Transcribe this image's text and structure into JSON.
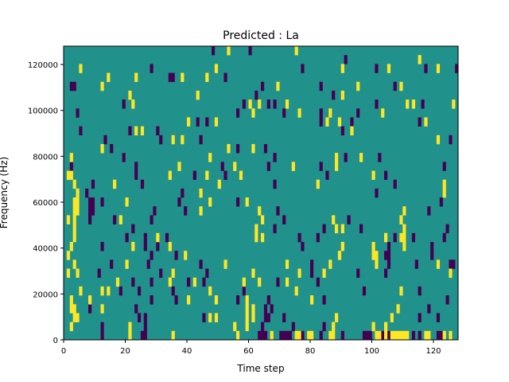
{
  "chart_data": {
    "type": "heatmap",
    "title": "Predicted : La",
    "xlabel": "Time step",
    "ylabel": "Frequency (Hz)",
    "xlim": [
      0,
      128
    ],
    "ylim": [
      0,
      128000
    ],
    "n_time_steps": 128,
    "n_freq_bins": 33,
    "xticks": [
      0,
      20,
      40,
      60,
      80,
      100,
      120
    ],
    "xtick_labels": [
      "0",
      "20",
      "40",
      "60",
      "80",
      "100",
      "120"
    ],
    "yticks": [
      0,
      20000,
      40000,
      60000,
      80000,
      100000,
      120000
    ],
    "ytick_labels": [
      "0",
      "20000",
      "40000",
      "60000",
      "80000",
      "100000",
      "120000"
    ],
    "colormap": {
      "low": "#440154",
      "mid": "#21918c",
      "high": "#fde725"
    },
    "background_value": "mid",
    "note_cells_by_freq_bin": {
      "low": {
        "0": [
          12,
          25,
          26,
          63,
          64,
          65,
          70,
          71,
          72,
          73,
          77,
          83,
          90,
          97,
          98,
          99,
          103,
          105,
          113,
          115,
          121,
          122
        ],
        "1": [
          12,
          26,
          64,
          74,
          84
        ],
        "2": [
          24,
          26,
          45,
          65,
          66,
          71,
          115,
          121
        ],
        "3": [
          8,
          23,
          65,
          67,
          118
        ],
        "4": [
          28,
          36,
          56,
          66,
          84,
          124
        ],
        "5": [
          18,
          24,
          35,
          58,
          97,
          115
        ],
        "6": [
          22,
          28,
          40,
          45,
          69,
          82
        ],
        "7": [
          11,
          31,
          46,
          80,
          95,
          104
        ],
        "8": [
          15,
          27,
          44,
          80,
          105,
          114,
          125,
          126
        ],
        "9": [
          28,
          36,
          104,
          105,
          119
        ],
        "10": [
          12,
          26,
          30,
          77,
          105,
          119
        ],
        "11": [
          20,
          26,
          33,
          76,
          82,
          107,
          113,
          123
        ],
        "12": [
          22,
          68,
          84,
          96,
          124
        ],
        "13": [
          8,
          16,
          28,
          71,
          92
        ],
        "14": [
          8,
          9,
          29,
          39,
          69,
          118
        ],
        "15": [
          8,
          9,
          12,
          37,
          56,
          122
        ],
        "16": [
          7,
          38,
          101
        ],
        "17": [
          9,
          25,
          68,
          107
        ],
        "18": [
          23,
          42,
          52,
          85,
          104
        ],
        "19": [
          2,
          23,
          51,
          66,
          83,
          123
        ],
        "20": [
          19,
          68,
          91,
          102
        ],
        "21": [
          15,
          56,
          65
        ],
        "22": [
          13,
          31,
          44,
          125
        ],
        "23": [
          5,
          21,
          30,
          90
        ],
        "24": [
          43,
          46,
          83,
          93,
          115
        ],
        "25": [
          4,
          56,
          71,
          83,
          95
        ],
        "26": [
          19,
          58,
          66,
          68,
          101,
          116
        ],
        "27": [
          62,
          87
        ],
        "28": [
          2,
          3,
          64,
          83,
          107
        ],
        "29": [
          34,
          35,
          52
        ],
        "30": [
          28,
          77,
          101,
          117,
          127
        ],
        "31": [
          91
        ],
        "32": [
          48,
          60
        ]
      },
      "high": {
        "0": [
          21,
          35,
          56,
          67,
          75,
          76,
          79,
          80,
          86,
          87,
          101,
          102,
          104,
          106,
          107,
          108,
          109,
          110,
          111,
          117,
          118,
          123,
          125
        ],
        "1": [
          2,
          21,
          55,
          59,
          87,
          100,
          104
        ],
        "2": [
          3,
          4,
          47,
          49,
          59,
          61,
          88,
          106
        ],
        "3": [
          2,
          3,
          12,
          59,
          61,
          108
        ],
        "4": [
          2,
          8,
          40,
          49,
          59,
          80
        ],
        "5": [
          5,
          12,
          14,
          47,
          75,
          109
        ],
        "6": [
          17,
          34,
          42,
          58,
          63,
          72
        ],
        "7": [
          1,
          4,
          35,
          61,
          76,
          84,
          125
        ],
        "8": [
          3,
          20,
          52,
          72,
          86,
          101,
          121
        ],
        "9": [
          1,
          39,
          89,
          100,
          101
        ],
        "10": [
          2,
          22,
          34,
          90,
          100,
          110
        ],
        "11": [
          3,
          30,
          62,
          64,
          104,
          109,
          110
        ],
        "12": [
          3,
          62,
          88,
          90,
          110
        ],
        "13": [
          1,
          3,
          18,
          64,
          87,
          109
        ],
        "14": [
          3,
          4,
          44,
          63,
          110
        ],
        "15": [
          3,
          4,
          20,
          47,
          59
        ],
        "16": [
          4,
          44,
          123
        ],
        "17": [
          3,
          16,
          50,
          82,
          123
        ],
        "18": [
          1,
          2,
          34,
          46,
          57,
          100
        ],
        "19": [
          37,
          55,
          74,
          88
        ],
        "20": [
          2,
          47,
          88,
          96
        ],
        "21": [
          12,
          53,
          61
        ],
        "22": [
          35,
          38,
          121
        ],
        "23": [
          23,
          25,
          93
        ],
        "24": [
          40,
          49,
          85,
          89,
          117
        ],
        "25": [
          61,
          76,
          86,
          103
        ],
        "26": [
          22,
          60,
          63,
          72,
          111,
          113,
          126
        ],
        "27": [
          21,
          43,
          90
        ],
        "28": [
          12,
          69,
          95,
          109
        ],
        "29": [
          14,
          23,
          38,
          46
        ],
        "30": [
          5,
          49,
          90,
          105,
          121
        ],
        "31": [
          115
        ],
        "32": [
          53,
          75
        ]
      }
    }
  }
}
